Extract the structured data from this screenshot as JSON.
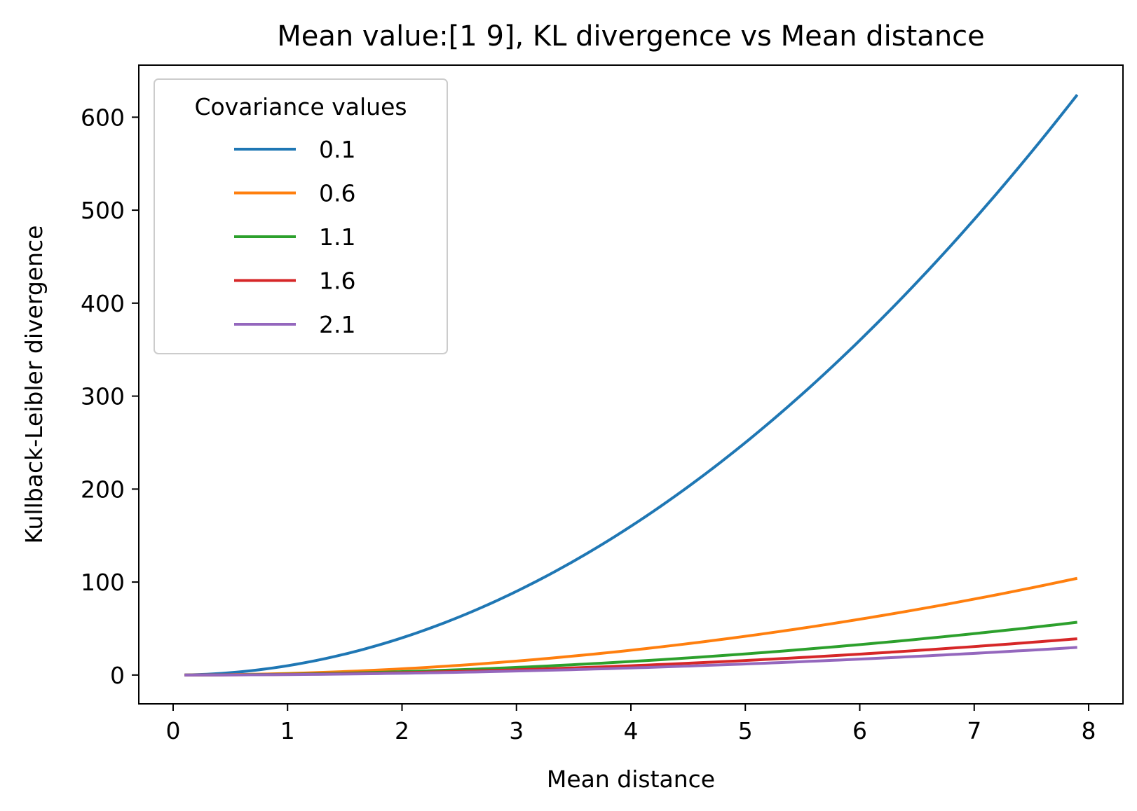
{
  "chart_data": {
    "type": "line",
    "title": "Mean value:[1 9], KL divergence vs Mean distance",
    "xlabel": "Mean distance",
    "ylabel": "Kullback-Leibler divergence",
    "xlim": [
      -0.3,
      8.3
    ],
    "ylim": [
      -31,
      656
    ],
    "xticks": [
      0,
      1,
      2,
      3,
      4,
      5,
      6,
      7,
      8
    ],
    "yticks": [
      0,
      100,
      200,
      300,
      400,
      500,
      600
    ],
    "grid": false,
    "legend": {
      "title": "Covariance values",
      "position": "upper-left"
    },
    "series": [
      {
        "name": "0.1",
        "color": "#1f77b4",
        "formula_scale": 10.0,
        "x_range": [
          0.1,
          7.9
        ]
      },
      {
        "name": "0.6",
        "color": "#ff7f0e",
        "formula_scale": 1.667,
        "x_range": [
          0.1,
          7.9
        ]
      },
      {
        "name": "1.1",
        "color": "#2ca02c",
        "formula_scale": 0.909,
        "x_range": [
          0.1,
          7.9
        ]
      },
      {
        "name": "1.6",
        "color": "#d62728",
        "formula_scale": 0.625,
        "x_range": [
          0.1,
          7.9
        ]
      },
      {
        "name": "2.1",
        "color": "#9467bd",
        "formula_scale": 0.476,
        "x_range": [
          0.1,
          7.9
        ]
      }
    ]
  }
}
